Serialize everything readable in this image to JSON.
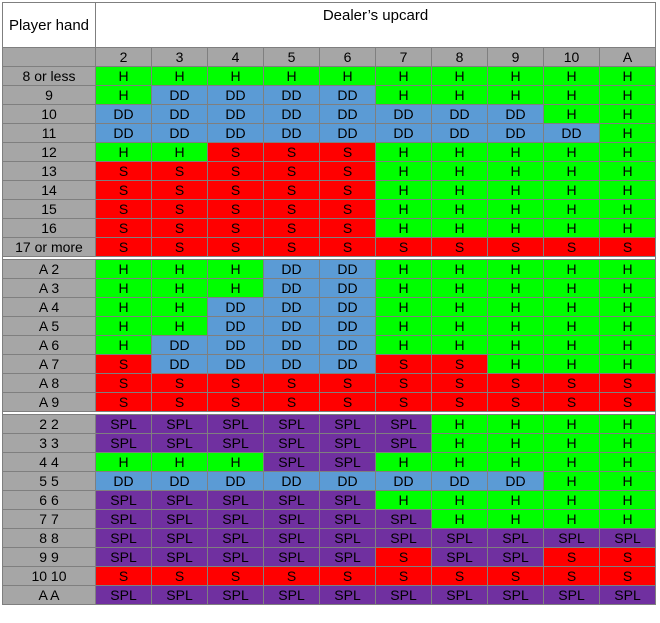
{
  "header": {
    "player_label": "Player hand",
    "dealer_label": "Dealer’s upcard"
  },
  "upcards": [
    "2",
    "3",
    "4",
    "5",
    "6",
    "7",
    "8",
    "9",
    "10",
    "A"
  ],
  "colors": {
    "H": "#00ff00",
    "S": "#ff0000",
    "DD": "#5b9bd5",
    "SPL": "#7030a0",
    "label_bg": "#a6a6a6"
  },
  "groups": [
    {
      "rows": [
        {
          "hand": "8 or less",
          "actions": [
            "H",
            "H",
            "H",
            "H",
            "H",
            "H",
            "H",
            "H",
            "H",
            "H"
          ]
        },
        {
          "hand": "9",
          "actions": [
            "H",
            "DD",
            "DD",
            "DD",
            "DD",
            "H",
            "H",
            "H",
            "H",
            "H"
          ]
        },
        {
          "hand": "10",
          "actions": [
            "DD",
            "DD",
            "DD",
            "DD",
            "DD",
            "DD",
            "DD",
            "DD",
            "H",
            "H"
          ]
        },
        {
          "hand": "11",
          "actions": [
            "DD",
            "DD",
            "DD",
            "DD",
            "DD",
            "DD",
            "DD",
            "DD",
            "DD",
            "H"
          ]
        },
        {
          "hand": "12",
          "actions": [
            "H",
            "H",
            "S",
            "S",
            "S",
            "H",
            "H",
            "H",
            "H",
            "H"
          ]
        },
        {
          "hand": "13",
          "actions": [
            "S",
            "S",
            "S",
            "S",
            "S",
            "H",
            "H",
            "H",
            "H",
            "H"
          ]
        },
        {
          "hand": "14",
          "actions": [
            "S",
            "S",
            "S",
            "S",
            "S",
            "H",
            "H",
            "H",
            "H",
            "H"
          ]
        },
        {
          "hand": "15",
          "actions": [
            "S",
            "S",
            "S",
            "S",
            "S",
            "H",
            "H",
            "H",
            "H",
            "H"
          ]
        },
        {
          "hand": "16",
          "actions": [
            "S",
            "S",
            "S",
            "S",
            "S",
            "H",
            "H",
            "H",
            "H",
            "H"
          ]
        },
        {
          "hand": "17 or more",
          "actions": [
            "S",
            "S",
            "S",
            "S",
            "S",
            "S",
            "S",
            "S",
            "S",
            "S"
          ]
        }
      ]
    },
    {
      "rows": [
        {
          "hand": "A 2",
          "actions": [
            "H",
            "H",
            "H",
            "DD",
            "DD",
            "H",
            "H",
            "H",
            "H",
            "H"
          ]
        },
        {
          "hand": "A 3",
          "actions": [
            "H",
            "H",
            "H",
            "DD",
            "DD",
            "H",
            "H",
            "H",
            "H",
            "H"
          ]
        },
        {
          "hand": "A 4",
          "actions": [
            "H",
            "H",
            "DD",
            "DD",
            "DD",
            "H",
            "H",
            "H",
            "H",
            "H"
          ]
        },
        {
          "hand": "A 5",
          "actions": [
            "H",
            "H",
            "DD",
            "DD",
            "DD",
            "H",
            "H",
            "H",
            "H",
            "H"
          ]
        },
        {
          "hand": "A 6",
          "actions": [
            "H",
            "DD",
            "DD",
            "DD",
            "DD",
            "H",
            "H",
            "H",
            "H",
            "H"
          ]
        },
        {
          "hand": "A 7",
          "actions": [
            "S",
            "DD",
            "DD",
            "DD",
            "DD",
            "S",
            "S",
            "H",
            "H",
            "H"
          ]
        },
        {
          "hand": "A 8",
          "actions": [
            "S",
            "S",
            "S",
            "S",
            "S",
            "S",
            "S",
            "S",
            "S",
            "S"
          ]
        },
        {
          "hand": "A 9",
          "actions": [
            "S",
            "S",
            "S",
            "S",
            "S",
            "S",
            "S",
            "S",
            "S",
            "S"
          ]
        }
      ]
    },
    {
      "rows": [
        {
          "hand": "2 2",
          "actions": [
            "SPL",
            "SPL",
            "SPL",
            "SPL",
            "SPL",
            "SPL",
            "H",
            "H",
            "H",
            "H"
          ]
        },
        {
          "hand": "3 3",
          "actions": [
            "SPL",
            "SPL",
            "SPL",
            "SPL",
            "SPL",
            "SPL",
            "H",
            "H",
            "H",
            "H"
          ]
        },
        {
          "hand": "4 4",
          "actions": [
            "H",
            "H",
            "H",
            "SPL",
            "SPL",
            "H",
            "H",
            "H",
            "H",
            "H"
          ]
        },
        {
          "hand": "5 5",
          "actions": [
            "DD",
            "DD",
            "DD",
            "DD",
            "DD",
            "DD",
            "DD",
            "DD",
            "H",
            "H"
          ]
        },
        {
          "hand": "6 6",
          "actions": [
            "SPL",
            "SPL",
            "SPL",
            "SPL",
            "SPL",
            "H",
            "H",
            "H",
            "H",
            "H"
          ]
        },
        {
          "hand": "7 7",
          "actions": [
            "SPL",
            "SPL",
            "SPL",
            "SPL",
            "SPL",
            "SPL",
            "H",
            "H",
            "H",
            "H"
          ]
        },
        {
          "hand": "8 8",
          "actions": [
            "SPL",
            "SPL",
            "SPL",
            "SPL",
            "SPL",
            "SPL",
            "SPL",
            "SPL",
            "SPL",
            "SPL"
          ]
        },
        {
          "hand": "9 9",
          "actions": [
            "SPL",
            "SPL",
            "SPL",
            "SPL",
            "SPL",
            "S",
            "SPL",
            "SPL",
            "S",
            "S"
          ]
        },
        {
          "hand": "10 10",
          "actions": [
            "S",
            "S",
            "S",
            "S",
            "S",
            "S",
            "S",
            "S",
            "S",
            "S"
          ]
        },
        {
          "hand": "A A",
          "actions": [
            "SPL",
            "SPL",
            "SPL",
            "SPL",
            "SPL",
            "SPL",
            "SPL",
            "SPL",
            "SPL",
            "SPL"
          ]
        }
      ]
    }
  ]
}
